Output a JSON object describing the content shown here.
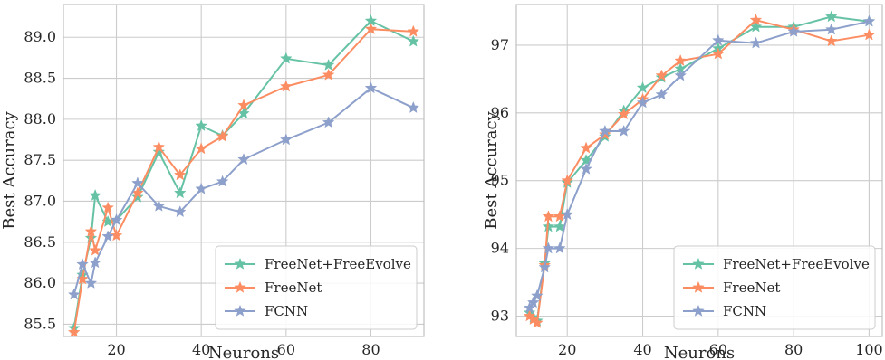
{
  "chart_data": [
    {
      "type": "line",
      "xlabel": "Neurons",
      "ylabel": "Best Accuracy",
      "xlim": [
        7.5,
        92.5
      ],
      "ylim": [
        85.35,
        89.4
      ],
      "xticks": [
        20,
        40,
        60,
        80
      ],
      "yticks": [
        85.5,
        86.0,
        86.5,
        87.0,
        87.5,
        88.0,
        88.5,
        89.0
      ],
      "ytick_labels": [
        "85.5",
        "86.0",
        "86.5",
        "87.0",
        "87.5",
        "88.0",
        "88.5",
        "89.0"
      ],
      "xtick_labels": [
        "20",
        "40",
        "60",
        "80"
      ],
      "legend": "lower-right",
      "grid": true,
      "series": [
        {
          "name": "FreeNet+FreeEvolve",
          "color": "#66c2a5",
          "x": [
            10,
            12,
            14,
            15,
            18,
            20,
            25,
            30,
            35,
            40,
            45,
            50,
            60,
            70,
            80,
            90
          ],
          "y": [
            85.45,
            86.1,
            86.55,
            87.07,
            86.75,
            86.77,
            87.05,
            87.6,
            87.1,
            87.92,
            87.8,
            88.07,
            88.74,
            88.66,
            89.2,
            88.95
          ]
        },
        {
          "name": "FreeNet",
          "color": "#fc8d62",
          "x": [
            10,
            12,
            14,
            15,
            18,
            20,
            25,
            30,
            35,
            40,
            45,
            50,
            60,
            70,
            80,
            90
          ],
          "y": [
            85.4,
            86.05,
            86.63,
            86.4,
            86.92,
            86.58,
            87.1,
            87.66,
            87.32,
            87.64,
            87.79,
            88.17,
            88.4,
            88.54,
            89.1,
            89.07
          ]
        },
        {
          "name": "FCNN",
          "color": "#8da0cb",
          "x": [
            10,
            12,
            14,
            15,
            18,
            20,
            25,
            30,
            35,
            40,
            45,
            50,
            60,
            70,
            80,
            90
          ],
          "y": [
            85.86,
            86.23,
            86.0,
            86.25,
            86.57,
            86.77,
            87.22,
            86.94,
            86.87,
            87.15,
            87.24,
            87.51,
            87.75,
            87.96,
            88.38,
            88.14
          ]
        }
      ]
    },
    {
      "type": "line",
      "xlabel": "Neurons",
      "ylabel": "Best Accuracy",
      "xlim": [
        6.5,
        103.5
      ],
      "ylim": [
        92.7,
        97.6
      ],
      "xticks": [
        20,
        40,
        60,
        80,
        100
      ],
      "yticks": [
        93,
        94,
        95,
        96,
        97
      ],
      "ytick_labels": [
        "93",
        "94",
        "95",
        "96",
        "97"
      ],
      "xtick_labels": [
        "20",
        "40",
        "60",
        "80",
        "100"
      ],
      "legend": "lower-right",
      "grid": true,
      "series": [
        {
          "name": "FreeNet+FreeEvolve",
          "color": "#66c2a5",
          "x": [
            10,
            11,
            12,
            14,
            15,
            18,
            20,
            25,
            30,
            35,
            40,
            45,
            50,
            60,
            70,
            80,
            90,
            100
          ],
          "y": [
            93.05,
            92.98,
            92.93,
            93.78,
            94.32,
            94.32,
            94.97,
            95.3,
            95.65,
            96.03,
            96.37,
            96.52,
            96.65,
            96.95,
            97.27,
            97.27,
            97.42,
            97.35
          ]
        },
        {
          "name": "FreeNet",
          "color": "#fc8d62",
          "x": [
            10,
            11,
            12,
            14,
            15,
            18,
            20,
            25,
            30,
            35,
            40,
            45,
            50,
            60,
            70,
            80,
            90,
            100
          ],
          "y": [
            93.0,
            92.95,
            92.9,
            93.75,
            94.47,
            94.47,
            95.0,
            95.48,
            95.68,
            95.98,
            96.2,
            96.55,
            96.77,
            96.87,
            97.37,
            97.23,
            97.06,
            97.15
          ]
        },
        {
          "name": "FCNN",
          "color": "#8da0cb",
          "x": [
            10,
            11,
            12,
            14,
            15,
            18,
            20,
            25,
            30,
            35,
            40,
            45,
            50,
            60,
            70,
            80,
            90,
            100
          ],
          "y": [
            93.12,
            93.2,
            93.3,
            93.72,
            94.0,
            94.0,
            94.5,
            95.17,
            95.73,
            95.73,
            96.15,
            96.27,
            96.55,
            97.07,
            97.03,
            97.2,
            97.23,
            97.35
          ]
        }
      ]
    }
  ]
}
